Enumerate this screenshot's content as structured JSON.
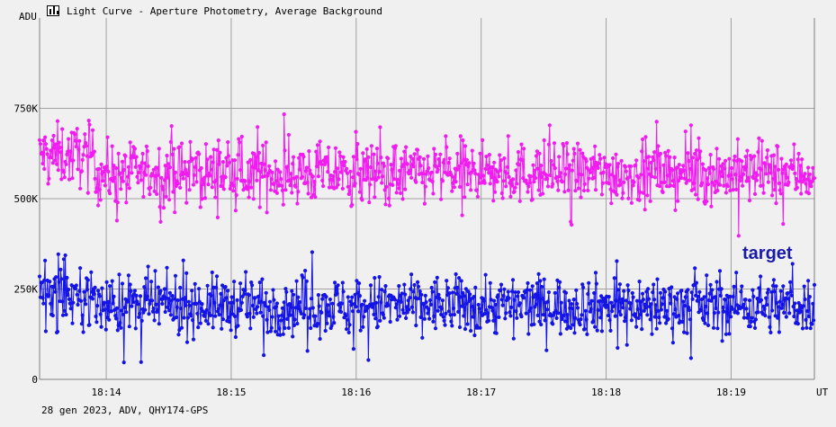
{
  "window": {
    "title": "Light Curve - Aperture Photometry, Average Background",
    "icon": "chart-icon"
  },
  "footer": {
    "text": "28 gen 2023, ADV, QHY174-GPS"
  },
  "colors": {
    "background": "#f0f0f0",
    "grid": "#a0a0a0",
    "target_series": "#1414e6",
    "comparison_series": "#f01cf0"
  },
  "chart_data": {
    "type": "line",
    "title": "",
    "xlabel": "UT",
    "ylabel": "ADU",
    "xlim": [
      "18:13:28",
      "18:19:40"
    ],
    "ylim": [
      0,
      1000000
    ],
    "xticks": [
      "18:14",
      "18:15",
      "18:16",
      "18:17",
      "18:18",
      "18:19"
    ],
    "yticks": [
      {
        "value": 0,
        "label": "0"
      },
      {
        "value": 250000,
        "label": "250K"
      },
      {
        "value": 500000,
        "label": "500K"
      },
      {
        "value": 750000,
        "label": "750K"
      }
    ],
    "grid": true,
    "annotation": "target",
    "series": [
      {
        "color": "#f01cf0",
        "mean": 570000,
        "scatter": 42000,
        "first_minute": {
          "until": "18:13:55",
          "mean": 620000
        },
        "samples_per_minute": 160
      },
      {
        "color": "#1414e6",
        "mean": 205000,
        "scatter": 40000,
        "first_minute": {
          "until": "18:13:55",
          "mean": 230000
        },
        "samples_per_minute": 160
      }
    ]
  }
}
